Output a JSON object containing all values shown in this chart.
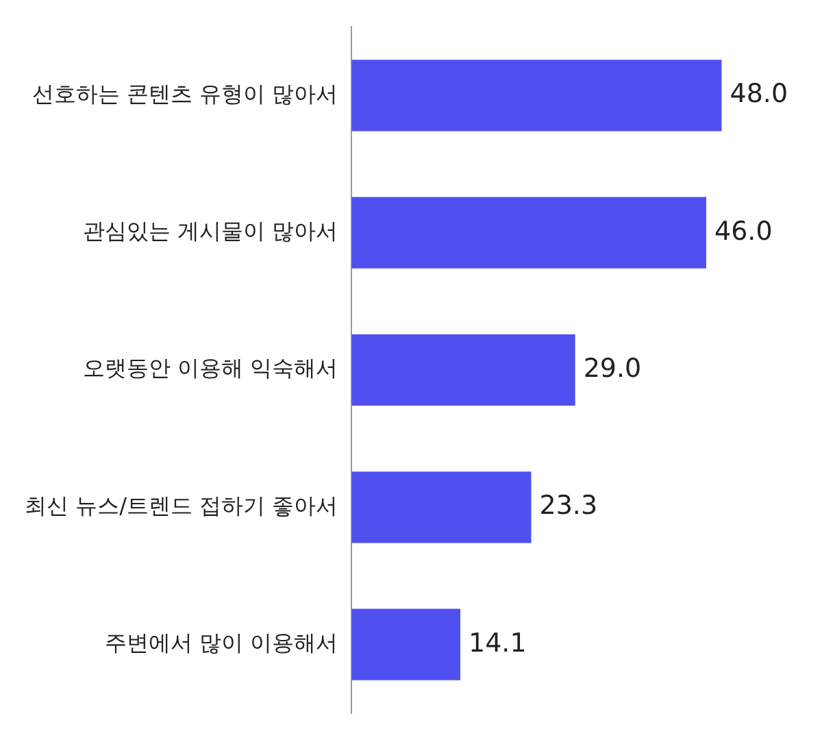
{
  "chart_data": {
    "type": "bar",
    "orientation": "horizontal",
    "categories": [
      "선호하는 콘텐츠 유형이 많아서",
      "관심있는 게시물이 많아서",
      "오랫동안 이용해 익숙해서",
      "최신 뉴스/트렌드 접하기 좋아서",
      "주변에서 많이 이용해서"
    ],
    "values": [
      48.0,
      46.0,
      29.0,
      23.3,
      14.1
    ],
    "value_labels": [
      "48.0",
      "46.0",
      "29.0",
      "23.3",
      "14.1"
    ],
    "color": "#5050f0",
    "grid": false,
    "legend": false,
    "tick_labels": "y"
  }
}
